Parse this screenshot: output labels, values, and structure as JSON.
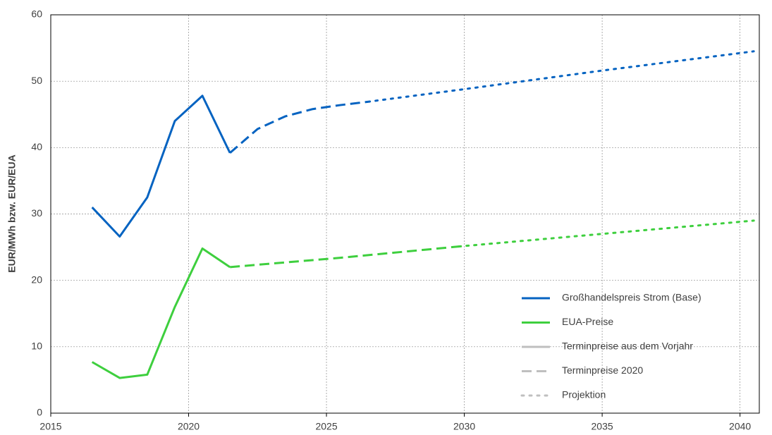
{
  "chart_data": {
    "type": "line",
    "y_label": "EUR/MWh bzw. EUR/EUA",
    "xlim": [
      2015,
      2040.7
    ],
    "xticks": [
      2015,
      2020,
      2025,
      2030,
      2035,
      2040
    ],
    "ylim": [
      0,
      60
    ],
    "yticks": [
      0,
      10,
      20,
      30,
      40,
      50,
      60
    ],
    "grid": true,
    "legend": "lower right",
    "style_legend_color": "#bfbfbf",
    "series": [
      {
        "name": "Großhandelspreis Strom (Base)",
        "color": "#0563c1",
        "segments": [
          {
            "style": "solid",
            "x": [
              2016.5,
              2017.5,
              2018.5,
              2019.5,
              2020.5,
              2021.5
            ],
            "values": [
              31,
              26.6,
              32.5,
              44,
              47.8,
              39.2
            ]
          },
          {
            "style": "dashed",
            "x": [
              2021.5,
              2022.5,
              2023.5,
              2024.5,
              2025.5,
              2026.5
            ],
            "values": [
              39.2,
              42.8,
              44.7,
              45.8,
              46.4,
              46.9
            ]
          },
          {
            "style": "dotted",
            "x": [
              2026.5,
              2030,
              2035,
              2040.5
            ],
            "values": [
              46.9,
              48.8,
              51.6,
              54.5
            ]
          }
        ]
      },
      {
        "name": "EUA-Preise",
        "color": "#3ecf3e",
        "segments": [
          {
            "style": "solid",
            "x": [
              2016.5,
              2017.5,
              2018.5,
              2019.5,
              2020.5,
              2021.5
            ],
            "values": [
              7.7,
              5.3,
              5.8,
              16,
              24.8,
              22
            ]
          },
          {
            "style": "dashed",
            "x": [
              2021.5,
              2025.5,
              2029.8
            ],
            "values": [
              22,
              23.4,
              25.1
            ]
          },
          {
            "style": "dotted",
            "x": [
              2029.8,
              2035,
              2040.5
            ],
            "values": [
              25.1,
              27,
              29
            ]
          }
        ]
      }
    ],
    "line_styles": [
      {
        "name": "Terminpreise aus dem Vorjahr",
        "style": "solid"
      },
      {
        "name": "Terminpreise 2020",
        "style": "dashed"
      },
      {
        "name": "Projektion",
        "style": "dotted"
      }
    ]
  }
}
